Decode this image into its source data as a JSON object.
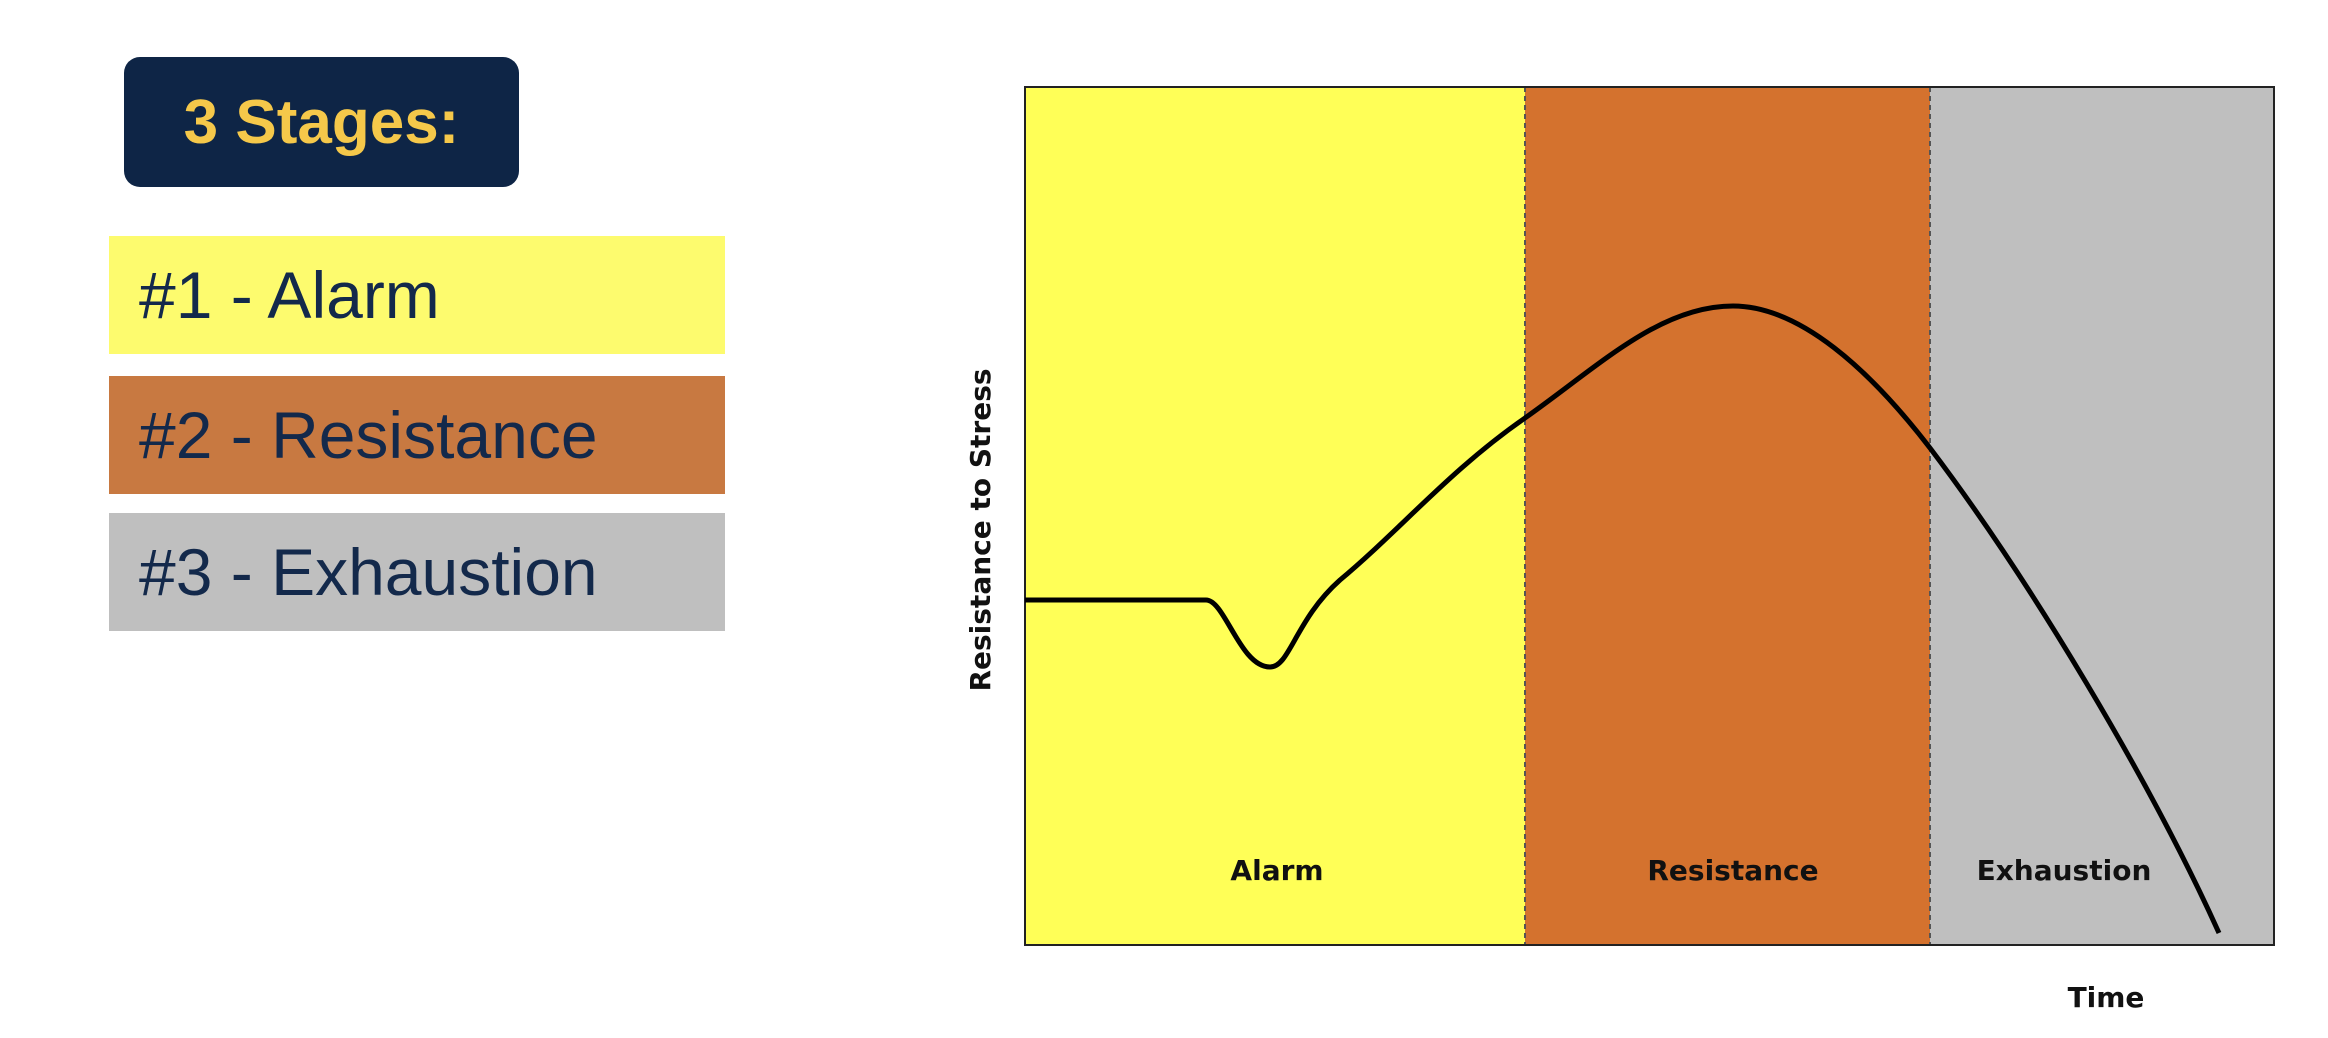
{
  "header": {
    "title": "3 Stages:"
  },
  "stages": [
    "#1 - Alarm",
    "#2 - Resistance",
    "#3 - Exhaustion"
  ],
  "diagram": {
    "y_label": "Resistance to Stress",
    "x_label": "Time",
    "regions": [
      "Alarm",
      "Resistance",
      "Exhaustion"
    ]
  }
}
